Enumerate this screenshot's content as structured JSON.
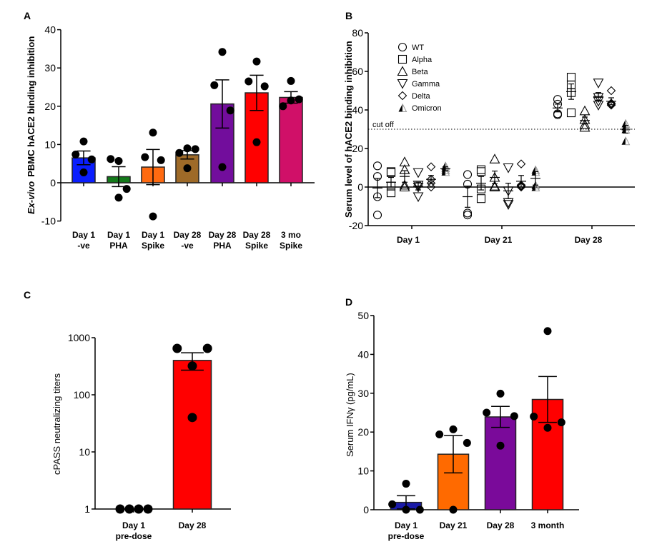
{
  "chart_data": [
    {
      "panel": "A",
      "type": "bar",
      "ylabel_italic": "Ex-vivo",
      "ylabel": "PBMC hACE2 binding inhibition",
      "ylim": [
        -10,
        40
      ],
      "yticks": [
        -10,
        0,
        10,
        20,
        30,
        40
      ],
      "categories": [
        [
          "Day 1",
          "-ve"
        ],
        [
          "Day 1",
          "PHA"
        ],
        [
          "Day 1",
          "Spike"
        ],
        [
          "Day 28",
          "-ve"
        ],
        [
          "Day 28",
          "PHA"
        ],
        [
          "Day 28",
          "Spike"
        ],
        [
          "3 mo",
          "Spike"
        ]
      ],
      "values": [
        6.5,
        1.6,
        4.1,
        7.3,
        20.6,
        23.5,
        22.3
      ],
      "errors": [
        1.8,
        2.6,
        4.6,
        1.1,
        6.3,
        4.6,
        1.5
      ],
      "points": [
        [
          10.8,
          7.4,
          6.1,
          2.7
        ],
        [
          5.7,
          6.2,
          -1.6,
          -3.9
        ],
        [
          13.1,
          6.7,
          5.9,
          -8.8
        ],
        [
          9.0,
          7.8,
          8.8,
          3.8
        ],
        [
          34.2,
          25.5,
          18.9,
          4.1
        ],
        [
          31.7,
          26.5,
          25.2,
          10.6
        ],
        [
          26.6,
          20.0,
          21.8,
          21.5
        ]
      ],
      "colors": [
        "#0a1eff",
        "#137a1a",
        "#ff6a10",
        "#9e6a28",
        "#720d9c",
        "#ff0000",
        "#d01068"
      ],
      "grid": false
    },
    {
      "panel": "B",
      "type": "scatter",
      "ylabel": "Serum level of hACE2 binding inhibition",
      "ylim": [
        -20,
        80
      ],
      "yticks": [
        -20,
        0,
        20,
        40,
        60,
        80
      ],
      "categories": [
        "Day 1",
        "Day 21",
        "Day 28"
      ],
      "cutoff": {
        "value": 30,
        "label": "cut off"
      },
      "legend_position": "top-left",
      "series": [
        {
          "name": "WT",
          "marker": "circle",
          "points": [
            [
              11,
              5.5,
              -5,
              -14.5
            ],
            [
              6.5,
              1.5,
              -13.5,
              -14.5
            ],
            [
              45.5,
              43,
              38,
              37.5
            ]
          ],
          "mean": [
            -0.5,
            -5,
            41
          ],
          "sem": [
            5,
            5.5,
            2
          ]
        },
        {
          "name": "Alpha",
          "marker": "square",
          "points": [
            [
              8,
              7.5,
              0.5,
              -3
            ],
            [
              9,
              8,
              -1,
              -6
            ],
            [
              57,
              53,
              49,
              38.5
            ]
          ],
          "mean": [
            2.5,
            2,
            49.5
          ],
          "sem": [
            2.5,
            3.5,
            4
          ]
        },
        {
          "name": "Beta",
          "marker": "triangle-up",
          "points": [
            [
              13,
              9,
              1,
              0
            ],
            [
              14.5,
              5,
              0.5,
              0
            ],
            [
              39.5,
              35,
              32.5,
              31
            ]
          ],
          "mean": [
            5.5,
            5,
            34.5
          ],
          "sem": [
            3,
            3.3,
            1.8
          ]
        },
        {
          "name": "Gamma",
          "marker": "triangle-down",
          "points": [
            [
              7.5,
              1,
              0,
              -5
            ],
            [
              10,
              -2,
              -8,
              -9
            ],
            [
              54,
              46.5,
              44.5,
              42.5
            ]
          ],
          "mean": [
            0.5,
            -2,
            47
          ],
          "sem": [
            2,
            4,
            2
          ]
        },
        {
          "name": "Delta",
          "marker": "diamond",
          "points": [
            [
              10.5,
              4,
              2,
              0
            ],
            [
              12,
              1,
              0.5,
              0
            ],
            [
              50,
              43.5,
              43,
              42.5
            ]
          ],
          "mean": [
            4,
            3,
            44.5
          ],
          "sem": [
            2,
            3,
            1.8
          ]
        },
        {
          "name": "Omicron",
          "marker": "half-triangle",
          "points": [
            [
              11,
              10,
              9,
              8
            ],
            [
              9,
              8,
              1,
              0
            ],
            [
              33,
              31.5,
              30,
              24
            ]
          ],
          "mean": [
            9.5,
            4.5,
            30
          ],
          "sem": [
            1,
            3.5,
            2
          ]
        }
      ]
    },
    {
      "panel": "C",
      "type": "bar",
      "ylabel": "cPASS neutralizing titers",
      "yscale": "log",
      "ylim": [
        1,
        1000
      ],
      "yticks": [
        "1",
        "10",
        "100",
        "1000"
      ],
      "categories": [
        [
          "Day 1",
          "pre-dose"
        ],
        [
          "Day 28",
          ""
        ]
      ],
      "values": [
        1,
        400
      ],
      "error_range": [
        [
          1,
          1
        ],
        [
          270,
          545
        ]
      ],
      "points": [
        [
          1,
          1,
          1,
          1
        ],
        [
          650,
          650,
          320,
          40
        ]
      ],
      "colors": [
        "#ff0000",
        "#ff0000"
      ]
    },
    {
      "panel": "D",
      "type": "bar",
      "ylabel": "Serum IFNγ (pg/mL)",
      "ylim": [
        0,
        50
      ],
      "yticks": [
        0,
        10,
        20,
        30,
        40,
        50
      ],
      "categories": [
        [
          "Day 1",
          "pre-dose"
        ],
        [
          "Day 21",
          ""
        ],
        [
          "Day 28",
          ""
        ],
        [
          "3 month",
          ""
        ]
      ],
      "values": [
        1.9,
        14.3,
        23.9,
        28.4
      ],
      "errors": [
        1.7,
        4.8,
        2.7,
        5.9
      ],
      "points": [
        [
          6.7,
          1.4,
          0,
          0
        ],
        [
          20.7,
          19.4,
          17.2,
          0
        ],
        [
          29.9,
          25.0,
          24.1,
          16.5
        ],
        [
          46.0,
          24.0,
          22.5,
          21.1
        ]
      ],
      "colors": [
        "#1a1aa8",
        "#ff6a00",
        "#7a0a9a",
        "#ff0000"
      ]
    }
  ]
}
